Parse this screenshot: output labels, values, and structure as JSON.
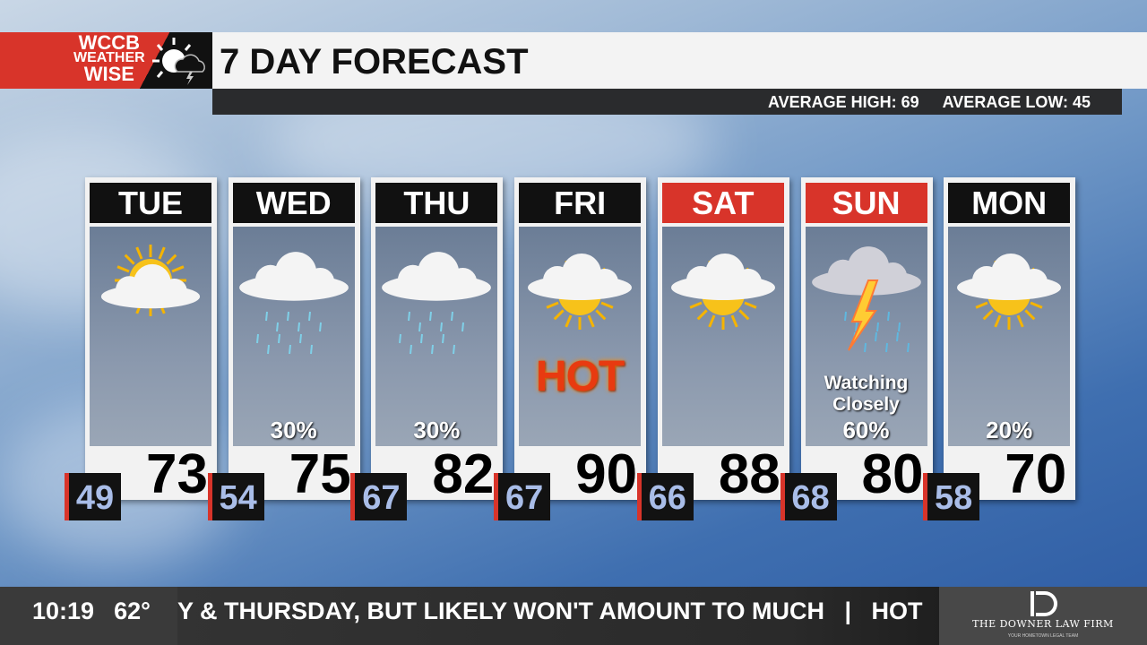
{
  "logo": {
    "line1": "WCCB",
    "line2": "WEATHER",
    "line3": "WISE"
  },
  "header": {
    "title": "7 DAY FORECAST",
    "avg_high": "AVERAGE HIGH: 69",
    "avg_low": "AVERAGE LOW: 45"
  },
  "days": [
    {
      "day": "TUE",
      "high": "73",
      "low": "49",
      "icon": "sun-cloud-icon",
      "header_color": "#111111",
      "note": "",
      "precip": ""
    },
    {
      "day": "WED",
      "high": "75",
      "low": "54",
      "icon": "cloud-rain-icon",
      "header_color": "#111111",
      "note": "",
      "precip": "30%"
    },
    {
      "day": "THU",
      "high": "82",
      "low": "67",
      "icon": "cloud-rain-icon",
      "header_color": "#111111",
      "note": "",
      "precip": "30%"
    },
    {
      "day": "FRI",
      "high": "90",
      "low": "67",
      "icon": "partly-sunny-icon",
      "header_color": "#111111",
      "note": "HOT",
      "precip": ""
    },
    {
      "day": "SAT",
      "high": "88",
      "low": "66",
      "icon": "partly-sunny-icon",
      "header_color": "#d8342a",
      "note": "",
      "precip": ""
    },
    {
      "day": "SUN",
      "high": "80",
      "low": "68",
      "icon": "thunderstorm-icon",
      "header_color": "#d8342a",
      "note": "Watching Closely",
      "precip": "60%"
    },
    {
      "day": "MON",
      "high": "70",
      "low": "58",
      "icon": "partly-sunny-icon",
      "header_color": "#111111",
      "note": "",
      "precip": "20%"
    }
  ],
  "ticker": {
    "time": "10:19",
    "temp": "62°",
    "text": "Y & THURSDAY, BUT LIKELY WON'T AMOUNT TO MUCH   |   HOT"
  },
  "sponsor": {
    "name": "THE DOWNER LAW FIRM",
    "tagline": "YOUR HOMETOWN LEGAL TEAM"
  }
}
